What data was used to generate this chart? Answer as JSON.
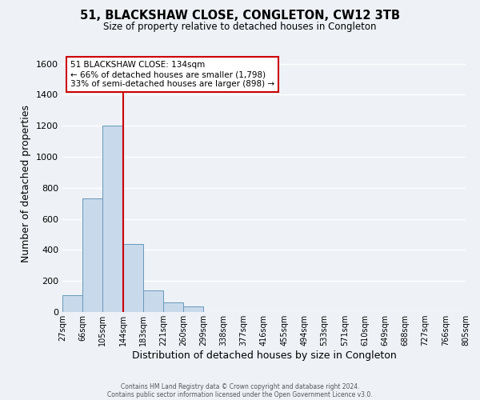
{
  "title": "51, BLACKSHAW CLOSE, CONGLETON, CW12 3TB",
  "subtitle": "Size of property relative to detached houses in Congleton",
  "xlabel": "Distribution of detached houses by size in Congleton",
  "ylabel": "Number of detached properties",
  "bin_labels": [
    "27sqm",
    "66sqm",
    "105sqm",
    "144sqm",
    "183sqm",
    "221sqm",
    "260sqm",
    "299sqm",
    "338sqm",
    "377sqm",
    "416sqm",
    "455sqm",
    "494sqm",
    "533sqm",
    "571sqm",
    "610sqm",
    "649sqm",
    "688sqm",
    "727sqm",
    "766sqm",
    "805sqm"
  ],
  "bar_heights": [
    110,
    730,
    1200,
    440,
    140,
    60,
    35,
    0,
    0,
    0,
    0,
    0,
    0,
    0,
    0,
    0,
    0,
    0,
    0,
    0
  ],
  "bar_color": "#c8d9eb",
  "bar_edge_color": "#6699bb",
  "property_line_x": 3,
  "property_line_color": "#cc0000",
  "ylim": [
    0,
    1650
  ],
  "yticks": [
    0,
    200,
    400,
    600,
    800,
    1000,
    1200,
    1400,
    1600
  ],
  "annotation_text": "51 BLACKSHAW CLOSE: 134sqm\n← 66% of detached houses are smaller (1,798)\n33% of semi-detached houses are larger (898) →",
  "annotation_box_color": "#ffffff",
  "annotation_box_edge": "#cc0000",
  "footer_line1": "Contains HM Land Registry data © Crown copyright and database right 2024.",
  "footer_line2": "Contains public sector information licensed under the Open Government Licence v3.0.",
  "background_color": "#eef2f7",
  "grid_color": "#ffffff"
}
